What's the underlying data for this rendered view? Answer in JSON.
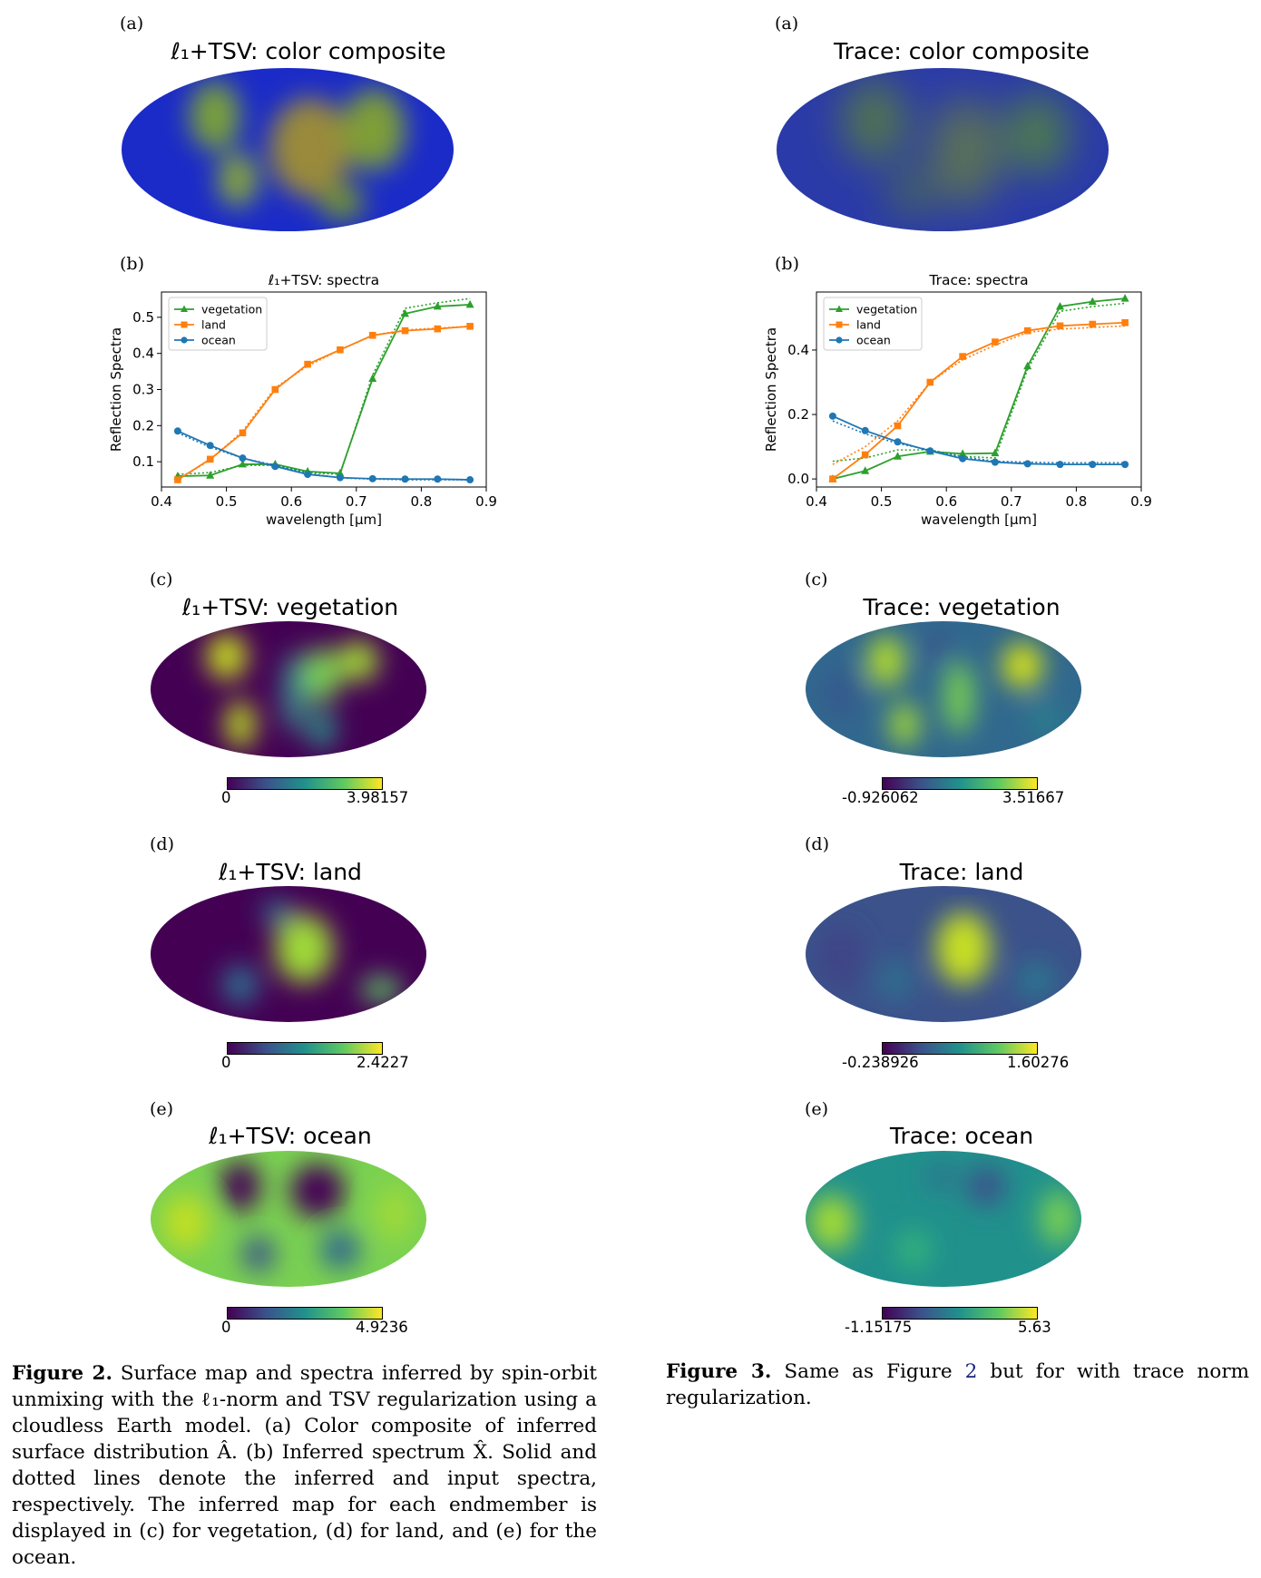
{
  "left": {
    "panels": {
      "a": {
        "letter": "(a)",
        "title": "ℓ₁+TSV: color composite"
      },
      "b": {
        "letter": "(b)"
      },
      "c": {
        "letter": "(c)",
        "title": "ℓ₁+TSV: vegetation",
        "cb_min": "0",
        "cb_max": "3.98157"
      },
      "d": {
        "letter": "(d)",
        "title": "ℓ₁+TSV: land",
        "cb_min": "0",
        "cb_max": "2.4227"
      },
      "e": {
        "letter": "(e)",
        "title": "ℓ₁+TSV: ocean",
        "cb_min": "0",
        "cb_max": "4.9236"
      }
    }
  },
  "right": {
    "panels": {
      "a": {
        "letter": "(a)",
        "title": "Trace: color composite"
      },
      "b": {
        "letter": "(b)"
      },
      "c": {
        "letter": "(c)",
        "title": "Trace: vegetation",
        "cb_min": "-0.926062",
        "cb_max": "3.51667"
      },
      "d": {
        "letter": "(d)",
        "title": "Trace: land",
        "cb_min": "-0.238926",
        "cb_max": "1.60276"
      },
      "e": {
        "letter": "(e)",
        "title": "Trace: ocean",
        "cb_min": "-1.15175",
        "cb_max": "5.63"
      }
    }
  },
  "chart_data": [
    {
      "type": "line",
      "title": "ℓ₁+TSV: spectra",
      "xlabel": "wavelength [μm]",
      "ylabel": "Reflection Spectra",
      "xlim": [
        0.4,
        0.9
      ],
      "ylim": [
        0.03,
        0.57
      ],
      "xticks": [
        0.4,
        0.5,
        0.6,
        0.7,
        0.8,
        0.9
      ],
      "yticks": [
        0.1,
        0.2,
        0.3,
        0.4,
        0.5
      ],
      "legend": "top-left",
      "x": [
        0.425,
        0.475,
        0.525,
        0.575,
        0.625,
        0.675,
        0.725,
        0.775,
        0.825,
        0.875
      ],
      "series": [
        {
          "name": "vegetation",
          "color": "#2ca02c",
          "marker": "triangle",
          "values": [
            0.06,
            0.062,
            0.093,
            0.093,
            0.073,
            0.068,
            0.33,
            0.51,
            0.53,
            0.535
          ],
          "input": [
            0.065,
            0.07,
            0.09,
            0.09,
            0.07,
            0.065,
            0.34,
            0.525,
            0.54,
            0.552
          ]
        },
        {
          "name": "land",
          "color": "#ff7f0e",
          "marker": "square",
          "values": [
            0.05,
            0.107,
            0.18,
            0.3,
            0.37,
            0.41,
            0.45,
            0.463,
            0.468,
            0.475
          ],
          "input": [
            0.05,
            0.105,
            0.185,
            0.305,
            0.365,
            0.41,
            0.45,
            0.465,
            0.47,
            0.475
          ]
        },
        {
          "name": "ocean",
          "color": "#1f77b4",
          "marker": "circle",
          "values": [
            0.185,
            0.145,
            0.11,
            0.087,
            0.065,
            0.056,
            0.053,
            0.052,
            0.052,
            0.05
          ],
          "input": [
            0.18,
            0.14,
            0.11,
            0.09,
            0.068,
            0.055,
            0.052,
            0.05,
            0.05,
            0.05
          ]
        }
      ]
    },
    {
      "type": "line",
      "title": "Trace: spectra",
      "xlabel": "wavelength [μm]",
      "ylabel": "Reflection Spectra",
      "xlim": [
        0.4,
        0.9
      ],
      "ylim": [
        -0.025,
        0.58
      ],
      "xticks": [
        0.4,
        0.5,
        0.6,
        0.7,
        0.8,
        0.9
      ],
      "yticks": [
        0.0,
        0.2,
        0.4
      ],
      "legend": "top-left",
      "x": [
        0.425,
        0.475,
        0.525,
        0.575,
        0.625,
        0.675,
        0.725,
        0.775,
        0.825,
        0.875
      ],
      "series": [
        {
          "name": "vegetation",
          "color": "#2ca02c",
          "marker": "triangle",
          "values": [
            0.0,
            0.025,
            0.07,
            0.085,
            0.078,
            0.08,
            0.35,
            0.535,
            0.55,
            0.56
          ],
          "input": [
            0.055,
            0.065,
            0.09,
            0.09,
            0.07,
            0.065,
            0.34,
            0.52,
            0.535,
            0.545
          ]
        },
        {
          "name": "land",
          "color": "#ff7f0e",
          "marker": "square",
          "values": [
            0.0,
            0.075,
            0.165,
            0.3,
            0.38,
            0.425,
            0.46,
            0.475,
            0.48,
            0.485
          ],
          "input": [
            0.045,
            0.1,
            0.18,
            0.3,
            0.37,
            0.415,
            0.455,
            0.465,
            0.47,
            0.475
          ]
        },
        {
          "name": "ocean",
          "color": "#1f77b4",
          "marker": "circle",
          "values": [
            0.195,
            0.15,
            0.115,
            0.087,
            0.063,
            0.052,
            0.047,
            0.045,
            0.045,
            0.045
          ],
          "input": [
            0.18,
            0.14,
            0.11,
            0.09,
            0.068,
            0.055,
            0.052,
            0.05,
            0.05,
            0.05
          ]
        }
      ]
    }
  ],
  "captions": {
    "fig2_label": "Figure 2.",
    "fig2_text": "Surface map and spectra inferred by spin-orbit unmixing with the ℓ₁-norm and TSV regularization using a cloudless Earth model. (a) Color composite of inferred surface distribution Â. (b) Inferred spectrum X̂. Solid and dotted lines denote the inferred and input spectra, respectively. The inferred map for each endmember is displayed in (c) for vegetation, (d) for land, and (e) for the ocean.",
    "fig3_label": "Figure 3.",
    "fig3_pre": "Same as Figure ",
    "fig3_ref": "2",
    "fig3_post": " but for with trace norm regularization."
  }
}
